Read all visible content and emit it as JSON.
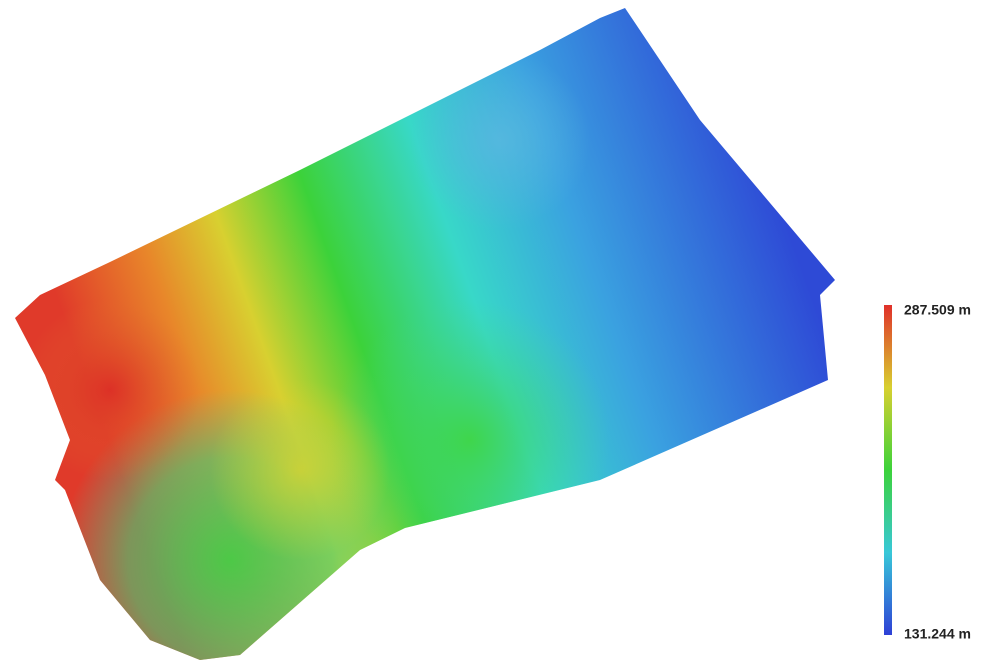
{
  "legend": {
    "max_label": "287.509 m",
    "min_label": "131.244 m"
  }
}
